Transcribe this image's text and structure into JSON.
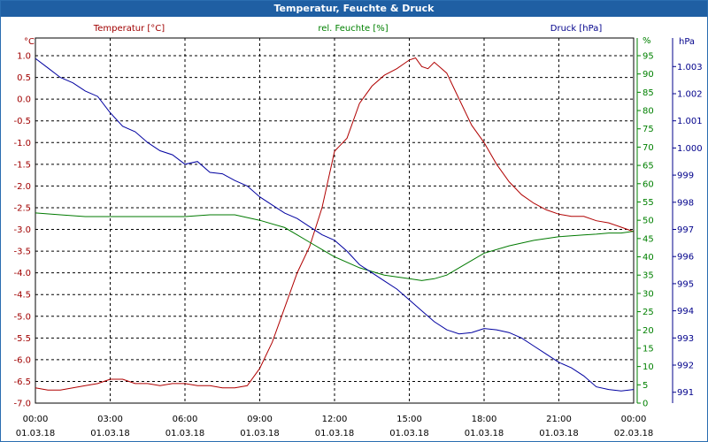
{
  "window": {
    "title": "Temperatur, Feuchte & Druck"
  },
  "chart_data": {
    "type": "line",
    "title": "Temperatur, Feuchte & Druck",
    "grid": true,
    "x_axis": {
      "ticks": [
        {
          "time": "00:00",
          "date": "01.03.18"
        },
        {
          "time": "03:00",
          "date": "01.03.18"
        },
        {
          "time": "06:00",
          "date": "01.03.18"
        },
        {
          "time": "09:00",
          "date": "01.03.18"
        },
        {
          "time": "12:00",
          "date": "01.03.18"
        },
        {
          "time": "15:00",
          "date": "01.03.18"
        },
        {
          "time": "18:00",
          "date": "01.03.18"
        },
        {
          "time": "21:00",
          "date": "01.03.18"
        },
        {
          "time": "00:00",
          "date": "02.03.18"
        }
      ]
    },
    "axes": {
      "temperature": {
        "label": "Temperatur [°C]",
        "unit": "°C",
        "ylim": [
          -7.0,
          1.0
        ],
        "ticks": [
          "1.0",
          "0.5",
          "0.0",
          "-0.5",
          "-1.0",
          "-1.5",
          "-2.0",
          "-2.5",
          "-3.0",
          "-3.5",
          "-4.0",
          "-4.5",
          "-5.0",
          "-5.5",
          "-6.0",
          "-6.5",
          "-7.0"
        ],
        "color": "#cc0000"
      },
      "humidity": {
        "label": "rel. Feuchte [%]",
        "unit": "%",
        "ylim": [
          0,
          95
        ],
        "ticks": [
          "95",
          "90",
          "85",
          "80",
          "75",
          "70",
          "65",
          "60",
          "55",
          "50",
          "45",
          "40",
          "35",
          "30",
          "25",
          "20",
          "15",
          "10",
          "5",
          "0"
        ],
        "color": "#008000"
      },
      "pressure": {
        "label": "Druck [hPa]",
        "unit": "hPa",
        "ylim": [
          990.6,
          1003.4
        ],
        "ticks": [
          "1.003",
          "1.002",
          "1.001",
          "1.000",
          "999",
          "998",
          "997",
          "996",
          "995",
          "994",
          "993",
          "992",
          "991"
        ],
        "tick_values": [
          1003,
          1002,
          1001,
          1000,
          999,
          998,
          997,
          996,
          995,
          994,
          993,
          992,
          991
        ],
        "color": "#00008b"
      }
    },
    "series": [
      {
        "name": "Temperatur [°C]",
        "axis": "temperature",
        "color": "#b00000",
        "x_hours": [
          0,
          0.5,
          1,
          1.5,
          2,
          2.5,
          3,
          3.5,
          4,
          4.5,
          5,
          5.5,
          6,
          6.5,
          7,
          7.5,
          8,
          8.5,
          9,
          9.5,
          10,
          10.5,
          11,
          11.5,
          12,
          12.5,
          13,
          13.5,
          14,
          14.5,
          15,
          15.25,
          15.5,
          15.75,
          16,
          16.5,
          17,
          17.5,
          18,
          18.5,
          19,
          19.5,
          20,
          20.5,
          21,
          21.5,
          22,
          22.5,
          23,
          23.5,
          24
        ],
        "values": [
          -6.65,
          -6.7,
          -6.7,
          -6.65,
          -6.6,
          -6.55,
          -6.45,
          -6.45,
          -6.55,
          -6.55,
          -6.6,
          -6.55,
          -6.55,
          -6.6,
          -6.6,
          -6.65,
          -6.65,
          -6.6,
          -6.2,
          -5.6,
          -4.8,
          -4.0,
          -3.4,
          -2.5,
          -1.2,
          -0.9,
          -0.1,
          0.3,
          0.55,
          0.7,
          0.9,
          0.95,
          0.75,
          0.7,
          0.85,
          0.6,
          0.0,
          -0.6,
          -1.0,
          -1.5,
          -1.9,
          -2.2,
          -2.4,
          -2.55,
          -2.65,
          -2.7,
          -2.7,
          -2.8,
          -2.85,
          -2.95,
          -3.05
        ]
      },
      {
        "name": "rel. Feuchte [%]",
        "axis": "humidity",
        "color": "#007a00",
        "x_hours": [
          0,
          1,
          2,
          3,
          4,
          5,
          6,
          7,
          8,
          9,
          10,
          10.5,
          11,
          11.5,
          12,
          13,
          13.5,
          14,
          15,
          15.5,
          16,
          16.5,
          17,
          17.5,
          18,
          19,
          20,
          21,
          22,
          22.5,
          23,
          23.5,
          24
        ],
        "values": [
          52,
          51.5,
          51,
          51,
          51,
          51,
          51,
          51.5,
          51.5,
          50,
          48,
          46,
          44,
          42,
          40,
          37,
          36,
          35,
          34,
          33.5,
          34,
          35,
          37,
          39,
          41,
          43,
          44.5,
          45.5,
          46,
          46.2,
          46.5,
          46.5,
          47
        ]
      },
      {
        "name": "Druck [hPa]",
        "axis": "pressure",
        "color": "#0000a0",
        "x_hours": [
          0,
          0.5,
          1,
          1.5,
          2,
          2.5,
          3,
          3.5,
          4,
          4.5,
          5,
          5.5,
          6,
          6.5,
          7,
          7.5,
          8,
          8.5,
          9,
          9.5,
          10,
          10.5,
          11,
          11.5,
          12,
          12.5,
          13,
          13.5,
          14,
          14.5,
          15,
          15.5,
          16,
          16.5,
          17,
          17.5,
          18,
          18.5,
          19,
          19.5,
          20,
          20.5,
          21,
          21.5,
          22,
          22.5,
          23,
          23.5,
          24
        ],
        "values": [
          1003.3,
          1002.95,
          1002.6,
          1002.4,
          1002.1,
          1001.9,
          1001.3,
          1000.8,
          1000.6,
          1000.2,
          999.9,
          999.75,
          999.4,
          999.5,
          999.1,
          999.05,
          998.8,
          998.6,
          998.2,
          997.9,
          997.6,
          997.4,
          997.1,
          996.8,
          996.6,
          996.2,
          995.7,
          995.4,
          995.1,
          994.8,
          994.4,
          994.0,
          993.6,
          993.3,
          993.15,
          993.2,
          993.35,
          993.3,
          993.2,
          993.0,
          992.7,
          992.4,
          992.1,
          991.9,
          991.6,
          991.2,
          991.1,
          991.05,
          991.1
        ]
      }
    ]
  }
}
